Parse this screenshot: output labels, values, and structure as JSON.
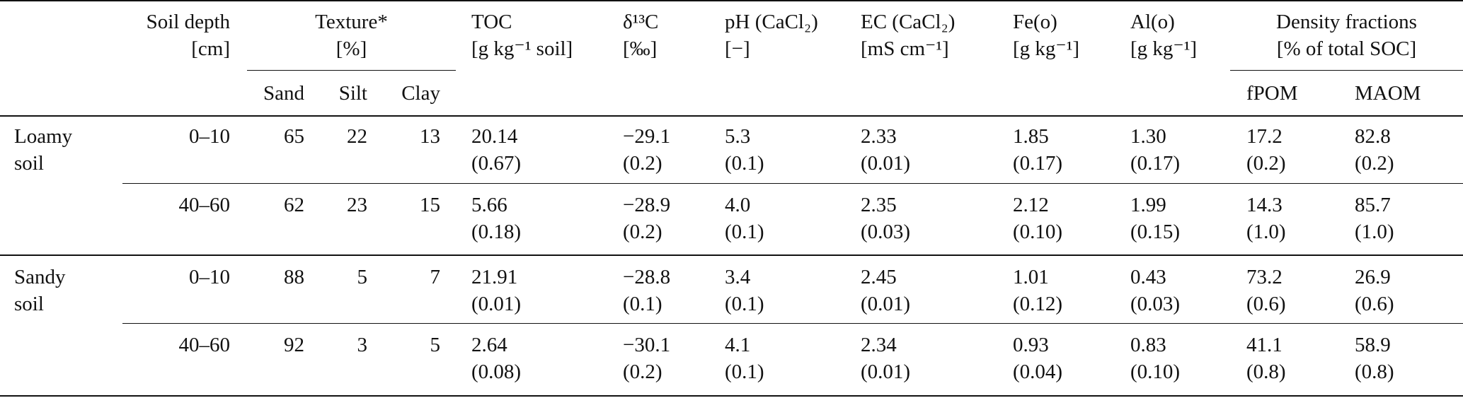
{
  "header": {
    "depth": [
      "Soil depth",
      "[cm]"
    ],
    "texture": [
      "Texture*",
      "[%]"
    ],
    "texture_sub": [
      "Sand",
      "Silt",
      "Clay"
    ],
    "toc": [
      "TOC",
      "[g kg⁻¹ soil]"
    ],
    "d13c": [
      "δ¹³C",
      "[‰]"
    ],
    "ph": [
      "pH (CaCl₂)",
      "[−]"
    ],
    "ec": [
      "EC (CaCl₂)",
      "[mS cm⁻¹]"
    ],
    "feo": [
      "Fe(o)",
      "[g kg⁻¹]"
    ],
    "alo": [
      "Al(o)",
      "[g kg⁻¹]"
    ],
    "density": [
      "Density fractions",
      "[% of total SOC]"
    ],
    "density_sub": [
      "fPOM",
      "MAOM"
    ]
  },
  "groups": [
    {
      "name": [
        "Loamy",
        "soil"
      ],
      "rows": [
        {
          "depth": "0–10",
          "sand": "65",
          "silt": "22",
          "clay": "13",
          "toc": [
            "20.14",
            "(0.67)"
          ],
          "d13c": [
            "−29.1",
            "(0.2)"
          ],
          "ph": [
            "5.3",
            "(0.1)"
          ],
          "ec": [
            "2.33",
            "(0.01)"
          ],
          "feo": [
            "1.85",
            "(0.17)"
          ],
          "alo": [
            "1.30",
            "(0.17)"
          ],
          "fpom": [
            "17.2",
            "(0.2)"
          ],
          "maom": [
            "82.8",
            "(0.2)"
          ]
        },
        {
          "depth": "40–60",
          "sand": "62",
          "silt": "23",
          "clay": "15",
          "toc": [
            "5.66",
            "(0.18)"
          ],
          "d13c": [
            "−28.9",
            "(0.2)"
          ],
          "ph": [
            "4.0",
            "(0.1)"
          ],
          "ec": [
            "2.35",
            "(0.03)"
          ],
          "feo": [
            "2.12",
            "(0.10)"
          ],
          "alo": [
            "1.99",
            "(0.15)"
          ],
          "fpom": [
            "14.3",
            "(1.0)"
          ],
          "maom": [
            "85.7",
            "(1.0)"
          ]
        }
      ]
    },
    {
      "name": [
        "Sandy",
        "soil"
      ],
      "rows": [
        {
          "depth": "0–10",
          "sand": "88",
          "silt": "5",
          "clay": "7",
          "toc": [
            "21.91",
            "(0.01)"
          ],
          "d13c": [
            "−28.8",
            "(0.1)"
          ],
          "ph": [
            "3.4",
            "(0.1)"
          ],
          "ec": [
            "2.45",
            "(0.01)"
          ],
          "feo": [
            "1.01",
            "(0.12)"
          ],
          "alo": [
            "0.43",
            "(0.03)"
          ],
          "fpom": [
            "73.2",
            "(0.6)"
          ],
          "maom": [
            "26.9",
            "(0.6)"
          ]
        },
        {
          "depth": "40–60",
          "sand": "92",
          "silt": "3",
          "clay": "5",
          "toc": [
            "2.64",
            "(0.08)"
          ],
          "d13c": [
            "−30.1",
            "(0.2)"
          ],
          "ph": [
            "4.1",
            "(0.1)"
          ],
          "ec": [
            "2.34",
            "(0.01)"
          ],
          "feo": [
            "0.93",
            "(0.04)"
          ],
          "alo": [
            "0.83",
            "(0.10)"
          ],
          "fpom": [
            "41.1",
            "(0.8)"
          ],
          "maom": [
            "58.9",
            "(0.8)"
          ]
        }
      ]
    }
  ]
}
